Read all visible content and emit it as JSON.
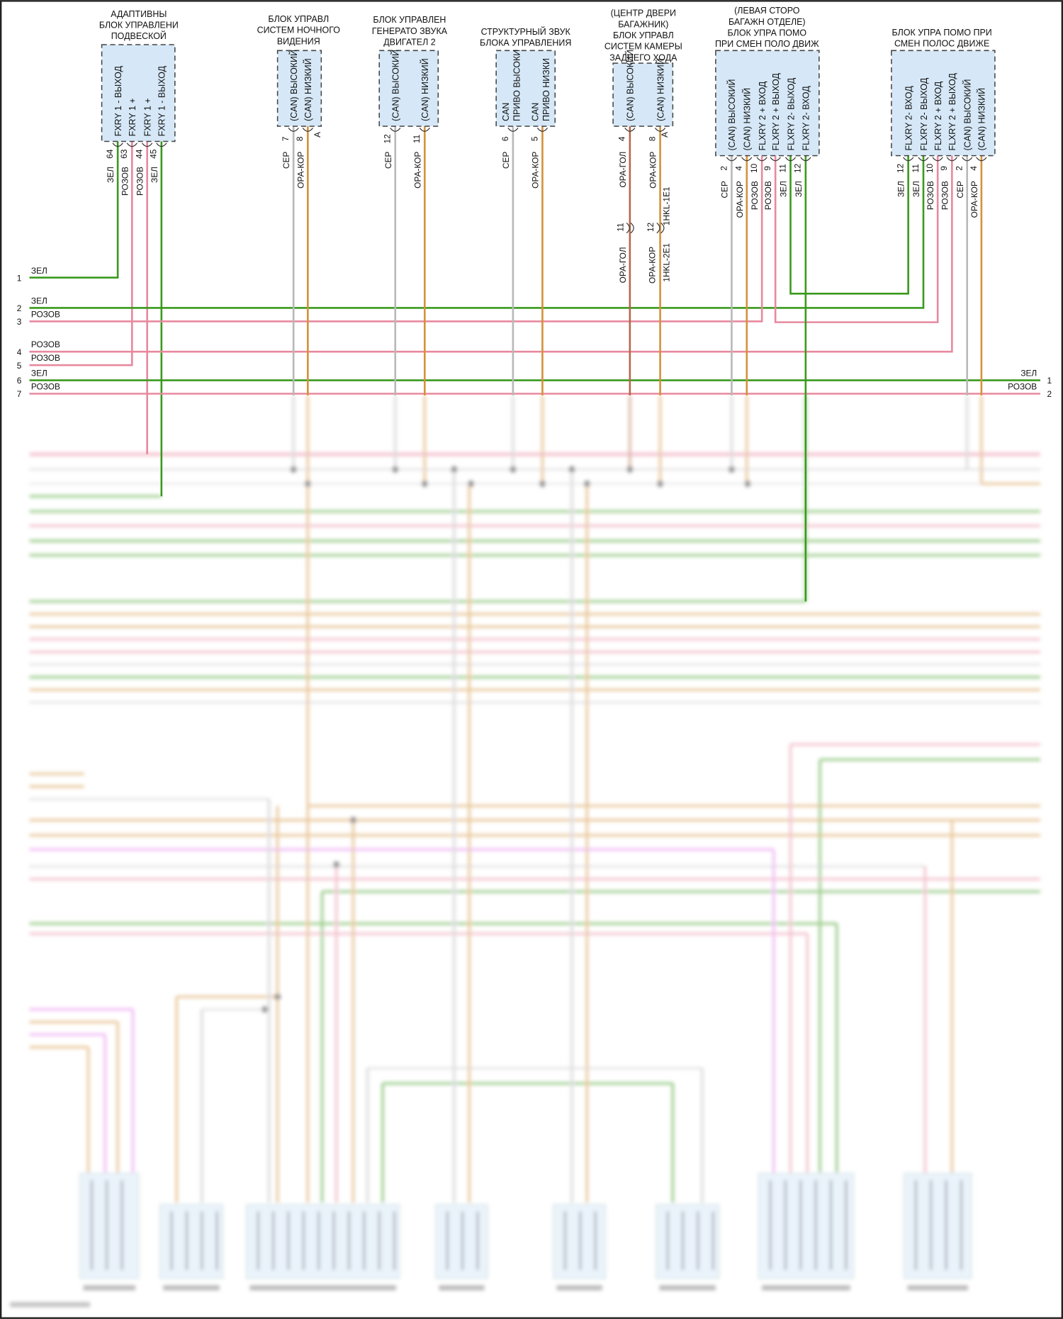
{
  "colors": {
    "green": "#3a9a1e",
    "pink": "#e8899e",
    "grey": "#b8b8b8",
    "orange": "#d4913a",
    "brown": "#b5684a",
    "box_fill": "#d6e8f7",
    "box_stroke": "#444444",
    "magenta": "#e27ae8"
  },
  "modules": [
    {
      "title": [
        "АДАПТИВНЫ",
        "БЛОК УПРАВЛЕНИ",
        "ПОДВЕСКОЙ"
      ],
      "pins": [
        {
          "name": [
            "FXRY 1 - ВЫХОД"
          ],
          "num": "64",
          "wire": "ЗЕЛ"
        },
        {
          "name": [
            "FXRY 1 +"
          ],
          "num": "63",
          "wire": "РОЗОВ"
        },
        {
          "name": [
            "FXRY 1 +"
          ],
          "num": "44",
          "wire": "РОЗОВ"
        },
        {
          "name": [
            "FXRY 1 - ВЫХОД"
          ],
          "num": "45",
          "wire": "ЗЕЛ"
        }
      ]
    },
    {
      "title": [
        "БЛОК УПРАВЛ",
        "СИСТЕМ НОЧНОГО",
        "ВИДЕНИЯ"
      ],
      "connector": "A",
      "pins": [
        {
          "name": [
            "(CAN) ВЫСОКИЙ"
          ],
          "num": "7",
          "wire": "СЕР"
        },
        {
          "name": [
            "(CAN) НИЗКИЙ"
          ],
          "num": "8",
          "wire": "ОРА-КОР"
        }
      ]
    },
    {
      "title": [
        "БЛОК УПРАВЛЕН",
        "ГЕНЕРАТО ЗВУКА",
        "ДВИГАТЕЛ 2"
      ],
      "pins": [
        {
          "name": [
            "(CAN) ВЫСОКИЙ"
          ],
          "num": "12",
          "wire": "СЕР"
        },
        {
          "name": [
            "(CAN) НИЗКИЙ"
          ],
          "num": "11",
          "wire": "ОРА-КОР"
        }
      ]
    },
    {
      "title": [
        "СТРУКТУРНЫЙ ЗВУК",
        "БЛОКА УПРАВЛЕНИЯ"
      ],
      "pins": [
        {
          "name": [
            "CAN",
            "ПРИВО ВЫСОКИ"
          ],
          "num": "6",
          "wire": "СЕР"
        },
        {
          "name": [
            "CAN",
            "ПРИВО НИЗКИ"
          ],
          "num": "5",
          "wire": "ОРА-КОР"
        }
      ]
    },
    {
      "title": [
        "(ЦЕНТР ДВЕРИ",
        "БАГАЖНИК)",
        "БЛОК УПРАВЛ",
        "СИСТЕМ КАМЕРЫ",
        "ЗАДНЕГО ХОДА"
      ],
      "connector": "A",
      "pins": [
        {
          "name": [
            "(CAN) ВЫСОКИЙ"
          ],
          "num": "4",
          "wire": "ОРА-ГОЛ"
        },
        {
          "name": [
            "(CAN) НИЗКИЙ"
          ],
          "num": "8",
          "wire": "ОРА-КОР"
        }
      ]
    },
    {
      "title": [
        "(ЛЕВАЯ СТОРО",
        "БАГАЖН ОТДЕЛЕ)",
        "БЛОК УПРА ПОМО",
        "ПРИ СМЕН ПОЛО ДВИЖ"
      ],
      "pins": [
        {
          "name": [
            "(CAN) ВЫСОКИЙ"
          ],
          "num": "2",
          "wire": "СЕР"
        },
        {
          "name": [
            "(CAN) НИЗКИЙ"
          ],
          "num": "4",
          "wire": "ОРА-КОР"
        },
        {
          "name": [
            "FLXRY 2 + ВХОД"
          ],
          "num": "10",
          "wire": "РОЗОВ"
        },
        {
          "name": [
            "FLXRY 2 + ВЫХОД"
          ],
          "num": "9",
          "wire": "РОЗОВ"
        },
        {
          "name": [
            "FLXRY 2- ВЫХОД"
          ],
          "num": "11",
          "wire": "ЗЕЛ"
        },
        {
          "name": [
            "FLXRY 2- ВХОД"
          ],
          "num": "12",
          "wire": "ЗЕЛ"
        }
      ]
    },
    {
      "title": [
        "БЛОК УПРА ПОМО ПРИ",
        "СМЕН ПОЛОС ДВИЖЕ"
      ],
      "pins": [
        {
          "name": [
            "FLXRY 2- ВХОД"
          ],
          "num": "12",
          "wire": "ЗЕЛ"
        },
        {
          "name": [
            "FLXRY 2- ВЫХОД"
          ],
          "num": "11",
          "wire": "ЗЕЛ"
        },
        {
          "name": [
            "FLXRY 2 + ВХОД"
          ],
          "num": "10",
          "wire": "РОЗОВ"
        },
        {
          "name": [
            "FLXRY 2 + ВЫХОД"
          ],
          "num": "9",
          "wire": "РОЗОВ"
        },
        {
          "name": [
            "(CAN) ВЫСОКИЙ"
          ],
          "num": "2",
          "wire": "СЕР"
        },
        {
          "name": [
            "(CAN) НИЗКИЙ"
          ],
          "num": "4",
          "wire": "ОРА-КОР"
        }
      ]
    }
  ],
  "inline_connector": {
    "pin_a": "11",
    "pin_b": "12",
    "id_top": "1HKL-1E1",
    "id_bottom": "1HKL-2E1",
    "wire_a": "ОРА-ГОЛ",
    "wire_b": "ОРА-КОР"
  },
  "left_lines": [
    {
      "num": "1",
      "label": "ЗЕЛ"
    },
    {
      "num": "2",
      "label": "ЗЕЛ"
    },
    {
      "num": "3",
      "label": "РОЗОВ"
    },
    {
      "num": "4",
      "label": "РОЗОВ"
    },
    {
      "num": "5",
      "label": "РОЗОВ"
    },
    {
      "num": "6",
      "label": "ЗЕЛ"
    },
    {
      "num": "7",
      "label": "РОЗОВ"
    }
  ],
  "right_lines": [
    {
      "num": "1",
      "label": "ЗЕЛ"
    },
    {
      "num": "2",
      "label": "РОЗОВ"
    }
  ]
}
